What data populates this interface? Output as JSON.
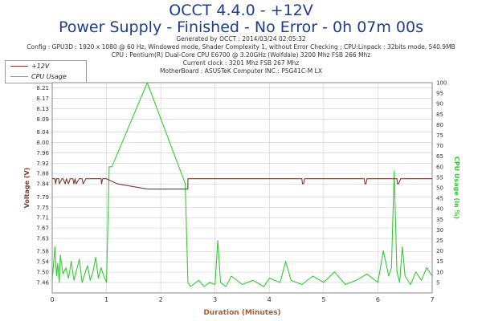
{
  "header": {
    "title_line1": "OCCT 4.4.0 - +12V",
    "title_line2": "Power Supply - Finished - No Error - 0h 07m 00s",
    "generated": "Generated by OCCT : 2014/03/24 02:05:32",
    "config": "Config : GPU3D : 1920 x 1080 @ 60 Hz, Windowed mode, Shader Complexity 1, without Error Checking ; CPU:Linpack : 32bits mode, 540.9MB",
    "cpu": "CPU : Pentium(R) Dual-Core CPU E6700 @ 3.20GHz (Wolfdale) 3200 Mhz FSB 266 Mhz",
    "clock": "Current clock : 3201 Mhz FSB 267 Mhz",
    "motherboard": "MotherBoard : ASUSTeK Computer INC.: P5G41C-M LX"
  },
  "legend": {
    "voltage_label": "+12V",
    "cpu_label": "CPU Usage"
  },
  "colors": {
    "voltage": "#7a3a2e",
    "cpu": "#33cc33",
    "grid": "#cfcfcf",
    "title": "#1f3d8f"
  },
  "chart_data": {
    "type": "line",
    "xlabel": "Duration (Minutes)",
    "ylabel_left": "Voltage (V)",
    "ylabel_right": "CPU Usage (in %)",
    "xlim": [
      0,
      7
    ],
    "ylim_left": [
      7.42,
      8.23
    ],
    "ylim_right": [
      0,
      100
    ],
    "x_ticks": [
      "0",
      "1",
      "2",
      "3",
      "4",
      "5",
      "6",
      "7"
    ],
    "y_left_ticks": [
      "7.46",
      "7.50",
      "7.54",
      "7.58",
      "7.63",
      "7.67",
      "7.71",
      "7.75",
      "7.79",
      "7.84",
      "7.88",
      "7.92",
      "7.96",
      "8.00",
      "8.04",
      "8.09",
      "8.13",
      "8.17",
      "8.21"
    ],
    "y_right_ticks": [
      "5",
      "10",
      "15",
      "20",
      "25",
      "30",
      "35",
      "40",
      "45",
      "50",
      "55",
      "60",
      "65",
      "70",
      "75",
      "80",
      "85",
      "90",
      "95",
      "100"
    ],
    "series": [
      {
        "name": "+12V",
        "axis": "left",
        "x": [
          0,
          0.05,
          0.06,
          0.08,
          0.1,
          0.12,
          0.13,
          0.18,
          0.2,
          0.24,
          0.26,
          0.3,
          0.33,
          0.38,
          0.4,
          0.42,
          0.44,
          0.5,
          0.55,
          0.57,
          0.62,
          0.64,
          0.9,
          0.91,
          0.93,
          1.0,
          1.2,
          1.75,
          2.0,
          2.5,
          2.5,
          4.6,
          4.61,
          4.63,
          4.65,
          5.75,
          5.76,
          5.78,
          5.8,
          6.35,
          6.36,
          6.38,
          6.42,
          7.0
        ],
        "y": [
          7.86,
          7.86,
          7.84,
          7.86,
          7.86,
          7.86,
          7.84,
          7.86,
          7.86,
          7.84,
          7.86,
          7.84,
          7.86,
          7.86,
          7.84,
          7.86,
          7.84,
          7.86,
          7.86,
          7.84,
          7.86,
          7.86,
          7.86,
          7.84,
          7.86,
          7.86,
          7.84,
          7.82,
          7.82,
          7.82,
          7.86,
          7.86,
          7.84,
          7.84,
          7.86,
          7.86,
          7.84,
          7.84,
          7.86,
          7.86,
          7.84,
          7.84,
          7.86,
          7.86
        ]
      },
      {
        "name": "CPU Usage",
        "axis": "right",
        "x": [
          0,
          0.05,
          0.08,
          0.1,
          0.13,
          0.15,
          0.2,
          0.25,
          0.3,
          0.35,
          0.4,
          0.45,
          0.5,
          0.55,
          0.6,
          0.65,
          0.7,
          0.75,
          0.8,
          0.85,
          0.9,
          0.95,
          1.0,
          1.05,
          1.1,
          1.75,
          2.45,
          2.5,
          2.55,
          2.6,
          2.7,
          2.8,
          2.9,
          3.0,
          3.05,
          3.1,
          3.2,
          3.3,
          3.5,
          3.7,
          3.9,
          4.0,
          4.2,
          4.3,
          4.4,
          4.6,
          4.8,
          5.0,
          5.2,
          5.4,
          5.6,
          5.8,
          6.0,
          6.1,
          6.2,
          6.25,
          6.3,
          6.35,
          6.4,
          6.45,
          6.5,
          6.6,
          6.7,
          6.8,
          6.9,
          7.0
        ],
        "y": [
          6,
          22,
          8,
          14,
          5,
          18,
          9,
          12,
          7,
          15,
          6,
          11,
          16,
          5,
          9,
          13,
          6,
          10,
          17,
          7,
          12,
          8,
          5,
          60,
          60,
          100,
          52,
          5,
          3,
          4,
          6,
          3,
          5,
          4,
          25,
          5,
          3,
          8,
          4,
          6,
          3,
          7,
          5,
          15,
          6,
          4,
          8,
          5,
          10,
          4,
          6,
          9,
          5,
          20,
          8,
          12,
          58,
          10,
          5,
          22,
          8,
          4,
          10,
          6,
          12,
          8
        ]
      }
    ],
    "grid": true,
    "legend_position": "top-left"
  }
}
